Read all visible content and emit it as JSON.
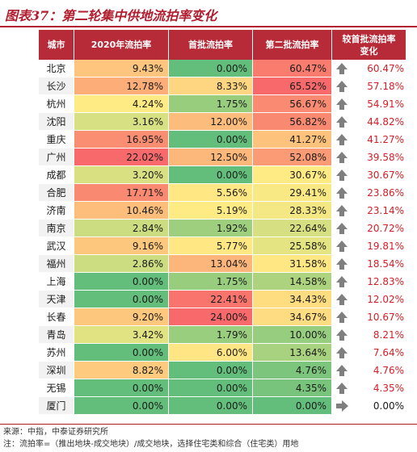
{
  "title": "图表37：第二轮集中供地流拍率变化",
  "headers": {
    "city": "城市",
    "y2020": "2020年流拍率",
    "first": "首批流拍率",
    "second": "第二批流拍率",
    "change": "较首批流拍率变化"
  },
  "rows": [
    {
      "city": "北京",
      "y2020": "9.43%",
      "first": "0.00%",
      "second": "60.47%",
      "change": "60.47%",
      "dir": "up"
    },
    {
      "city": "长沙",
      "y2020": "12.78%",
      "first": "8.33%",
      "second": "65.52%",
      "change": "57.18%",
      "dir": "up"
    },
    {
      "city": "杭州",
      "y2020": "4.24%",
      "first": "1.75%",
      "second": "56.67%",
      "change": "54.91%",
      "dir": "up"
    },
    {
      "city": "沈阳",
      "y2020": "3.16%",
      "first": "12.00%",
      "second": "56.82%",
      "change": "44.82%",
      "dir": "up"
    },
    {
      "city": "重庆",
      "y2020": "16.95%",
      "first": "0.00%",
      "second": "41.27%",
      "change": "41.27%",
      "dir": "up"
    },
    {
      "city": "广州",
      "y2020": "22.02%",
      "first": "12.50%",
      "second": "52.08%",
      "change": "39.58%",
      "dir": "up"
    },
    {
      "city": "成都",
      "y2020": "3.20%",
      "first": "0.00%",
      "second": "30.67%",
      "change": "30.67%",
      "dir": "up"
    },
    {
      "city": "合肥",
      "y2020": "17.71%",
      "first": "5.56%",
      "second": "29.41%",
      "change": "23.86%",
      "dir": "up"
    },
    {
      "city": "济南",
      "y2020": "10.46%",
      "first": "5.19%",
      "second": "28.33%",
      "change": "23.14%",
      "dir": "up"
    },
    {
      "city": "南京",
      "y2020": "2.84%",
      "first": "1.92%",
      "second": "22.64%",
      "change": "20.72%",
      "dir": "up"
    },
    {
      "city": "武汉",
      "y2020": "9.16%",
      "first": "5.77%",
      "second": "25.58%",
      "change": "19.81%",
      "dir": "up"
    },
    {
      "city": "福州",
      "y2020": "2.86%",
      "first": "13.04%",
      "second": "31.58%",
      "change": "18.54%",
      "dir": "up"
    },
    {
      "city": "上海",
      "y2020": "0.00%",
      "first": "1.75%",
      "second": "14.58%",
      "change": "12.83%",
      "dir": "up"
    },
    {
      "city": "天津",
      "y2020": "0.00%",
      "first": "22.41%",
      "second": "34.43%",
      "change": "12.02%",
      "dir": "up"
    },
    {
      "city": "长春",
      "y2020": "9.20%",
      "first": "24.00%",
      "second": "34.67%",
      "change": "10.67%",
      "dir": "up"
    },
    {
      "city": "青岛",
      "y2020": "3.42%",
      "first": "1.79%",
      "second": "10.00%",
      "change": "8.21%",
      "dir": "up"
    },
    {
      "city": "苏州",
      "y2020": "0.00%",
      "first": "6.00%",
      "second": "13.64%",
      "change": "7.64%",
      "dir": "up"
    },
    {
      "city": "深圳",
      "y2020": "8.82%",
      "first": "0.00%",
      "second": "4.76%",
      "change": "4.76%",
      "dir": "up"
    },
    {
      "city": "无锡",
      "y2020": "0.00%",
      "first": "0.00%",
      "second": "4.35%",
      "change": "4.35%",
      "dir": "up"
    },
    {
      "city": "厦门",
      "y2020": "0.00%",
      "first": "0.00%",
      "second": "0.00%",
      "change": "0.00%",
      "dir": "flat"
    }
  ],
  "notes": {
    "source": "来源：中指，中泰证券研究所",
    "note": "注：流拍率=（推出地块-成交地块）/成交地块，选择住宅类和综合（住宅类）用地"
  },
  "colors": {
    "header_bg": "#b72a37",
    "title": "#b01e2f",
    "up_arrow": "#7f7f7f",
    "change_text": "#d21f26"
  }
}
